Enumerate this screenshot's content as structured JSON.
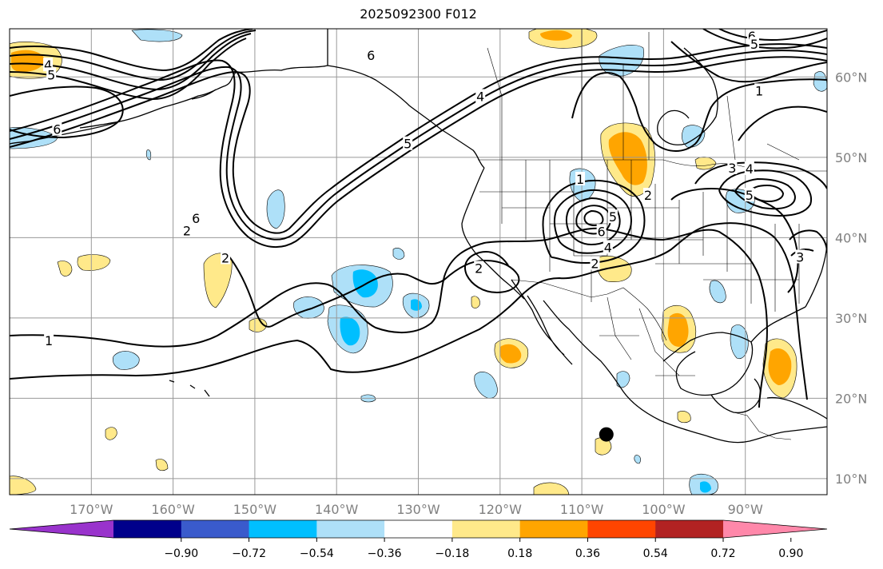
{
  "title": "2025092300 F012",
  "map": {
    "projection": "PlateCarree",
    "lon_range": [
      -180,
      -80
    ],
    "lat_range": [
      8,
      66
    ],
    "lon_ticks": [
      {
        "value": -170,
        "label": "170°W"
      },
      {
        "value": -160,
        "label": "160°W"
      },
      {
        "value": -150,
        "label": "150°W"
      },
      {
        "value": -140,
        "label": "140°W"
      },
      {
        "value": -130,
        "label": "130°W"
      },
      {
        "value": -120,
        "label": "120°W"
      },
      {
        "value": -110,
        "label": "110°W"
      },
      {
        "value": -100,
        "label": "100°W"
      },
      {
        "value": -90,
        "label": "90°W"
      }
    ],
    "lat_ticks": [
      {
        "value": 60,
        "label": "60°N"
      },
      {
        "value": 50,
        "label": "50°N"
      },
      {
        "value": 40,
        "label": "40°N"
      },
      {
        "value": 30,
        "label": "30°N"
      },
      {
        "value": 20,
        "label": "20°N"
      },
      {
        "value": 10,
        "label": "10°N"
      }
    ],
    "gridlines": true,
    "marker": {
      "label": "storm-center",
      "lon": -107,
      "lat": 15.5,
      "color": "#000000"
    }
  },
  "colorbar": {
    "orientation": "horizontal",
    "extend": "both",
    "tick_labels": [
      "−0.90",
      "−0.72",
      "−0.54",
      "−0.36",
      "−0.18",
      "0.18",
      "0.36",
      "0.54",
      "0.72",
      "0.90"
    ],
    "colors": [
      "#9933cc",
      "#00008b",
      "#3a5bcc",
      "#00bfff",
      "#aee0f8",
      "#ffffff",
      "#ffe98a",
      "#ffa500",
      "#ff4500",
      "#b22222",
      "#ff88aa"
    ]
  },
  "contour_labels": [
    {
      "text": "4",
      "lon": -175.3,
      "lat": 61.5
    },
    {
      "text": "5",
      "lon": -174.9,
      "lat": 60.3
    },
    {
      "text": "6",
      "lon": -174.2,
      "lat": 53.5
    },
    {
      "text": "6",
      "lon": -135.8,
      "lat": 62.7
    },
    {
      "text": "4",
      "lon": -122.4,
      "lat": 57.6
    },
    {
      "text": "6",
      "lon": -89.2,
      "lat": 65.1
    },
    {
      "text": "5",
      "lon": -88.9,
      "lat": 64.1
    },
    {
      "text": "1",
      "lon": -88.3,
      "lat": 58.3
    },
    {
      "text": "5",
      "lon": -131.3,
      "lat": 51.7
    },
    {
      "text": "2",
      "lon": -158.3,
      "lat": 40.9
    },
    {
      "text": "6",
      "lon": -157.2,
      "lat": 42.4
    },
    {
      "text": "2",
      "lon": -153.6,
      "lat": 37.5
    },
    {
      "text": "1",
      "lon": -175.2,
      "lat": 27.2
    },
    {
      "text": "2",
      "lon": -122.6,
      "lat": 36.2
    },
    {
      "text": "1",
      "lon": -110.2,
      "lat": 47.3
    },
    {
      "text": "2",
      "lon": -101.9,
      "lat": 45.3
    },
    {
      "text": "5",
      "lon": -106.2,
      "lat": 42.6
    },
    {
      "text": "6",
      "lon": -107.6,
      "lat": 40.8
    },
    {
      "text": "4",
      "lon": -106.8,
      "lat": 38.8
    },
    {
      "text": "2",
      "lon": -108.4,
      "lat": 36.8
    },
    {
      "text": "3",
      "lon": -91.6,
      "lat": 48.7
    },
    {
      "text": "4",
      "lon": -89.5,
      "lat": 48.6
    },
    {
      "text": "5",
      "lon": -89.5,
      "lat": 45.3
    },
    {
      "text": "3",
      "lon": -83.3,
      "lat": 37.6
    }
  ]
}
